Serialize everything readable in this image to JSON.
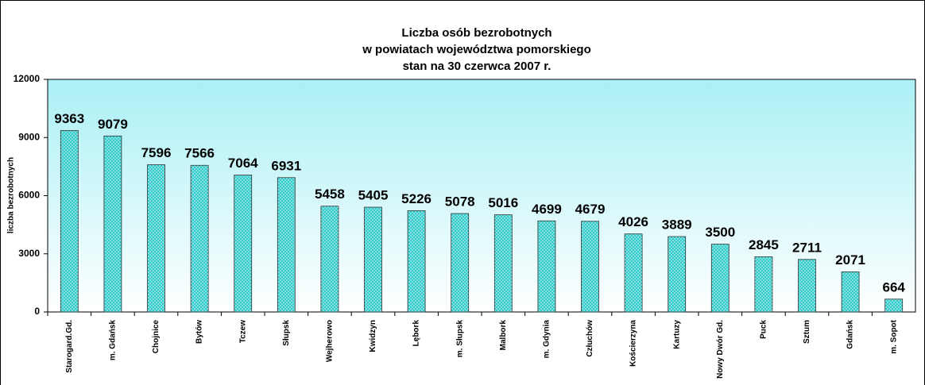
{
  "chart_data": {
    "type": "bar",
    "title": [
      "Liczba osób bezrobotnych",
      "w powiatach województwa pomorskiego",
      "stan na 30 czerwca 2007 r."
    ],
    "ylabel": "liczba bezrobotnych",
    "categories": [
      "Starogard.Gd.",
      "m. Gdańsk",
      "Chojnice",
      "Bytów",
      "Tczew",
      "Słupsk",
      "Wejherowo",
      "Kwidzyn",
      "Lębork",
      "m. Słupsk",
      "Malbork",
      "m. Gdynia",
      "Człuchów",
      "Kościerzyna",
      "Kartuzy",
      "Nowy Dwór Gd.",
      "Puck",
      "Sztum",
      "Gdańsk",
      "m. Sopot"
    ],
    "values": [
      9363,
      9079,
      7596,
      7566,
      7064,
      6931,
      5458,
      5405,
      5226,
      5078,
      5016,
      4699,
      4679,
      4026,
      3889,
      3500,
      2845,
      2711,
      2071,
      664
    ],
    "color": "#33cccc",
    "ylim": [
      0,
      12000
    ],
    "yticks": [
      0,
      3000,
      6000,
      9000,
      12000
    ]
  }
}
